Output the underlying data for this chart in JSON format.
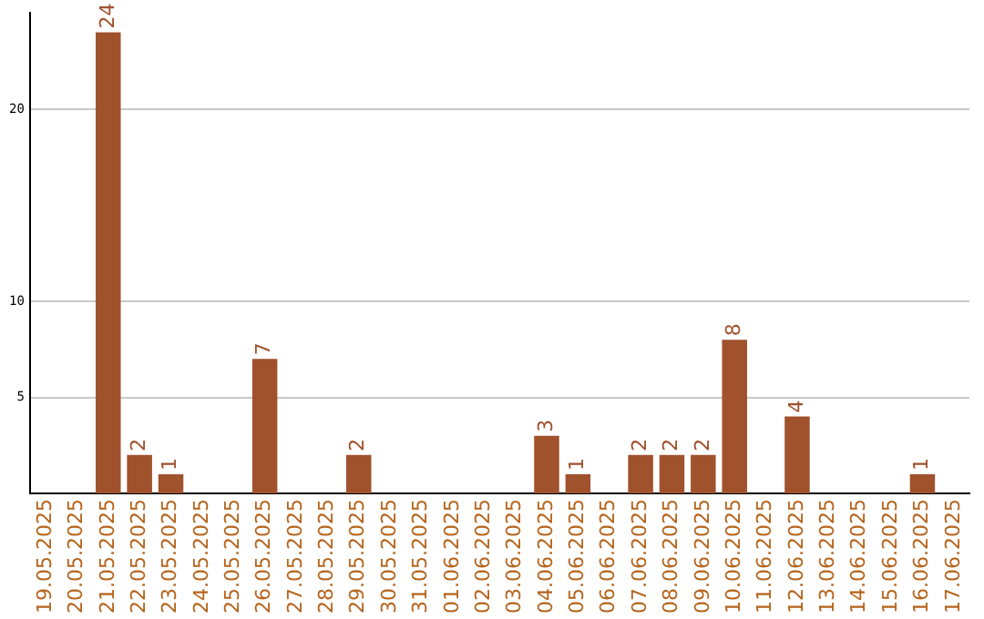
{
  "chart_data": {
    "type": "bar",
    "categories": [
      "19.05.2025",
      "20.05.2025",
      "21.05.2025",
      "22.05.2025",
      "23.05.2025",
      "24.05.2025",
      "25.05.2025",
      "26.05.2025",
      "27.05.2025",
      "28.05.2025",
      "29.05.2025",
      "30.05.2025",
      "31.05.2025",
      "01.06.2025",
      "02.06.2025",
      "03.06.2025",
      "04.06.2025",
      "05.06.2025",
      "06.06.2025",
      "07.06.2025",
      "08.06.2025",
      "09.06.2025",
      "10.06.2025",
      "11.06.2025",
      "12.06.2025",
      "13.06.2025",
      "14.06.2025",
      "15.06.2025",
      "16.06.2025",
      "17.06.2025"
    ],
    "values": [
      0,
      0,
      24,
      2,
      1,
      0,
      0,
      7,
      0,
      0,
      2,
      0,
      0,
      0,
      0,
      0,
      3,
      1,
      0,
      2,
      2,
      2,
      8,
      0,
      4,
      0,
      0,
      0,
      1,
      0
    ],
    "value_labels": [
      null,
      null,
      "24",
      "2",
      "1",
      null,
      null,
      "7",
      null,
      null,
      "2",
      null,
      null,
      null,
      null,
      null,
      "3",
      "1",
      null,
      "2",
      "2",
      "2",
      "8",
      null,
      "4",
      null,
      null,
      null,
      "1",
      null
    ],
    "color": "#a0522d",
    "ylim": [
      0,
      25
    ],
    "yticks": [
      5,
      10,
      20
    ],
    "grid": "y",
    "legend": false
  }
}
